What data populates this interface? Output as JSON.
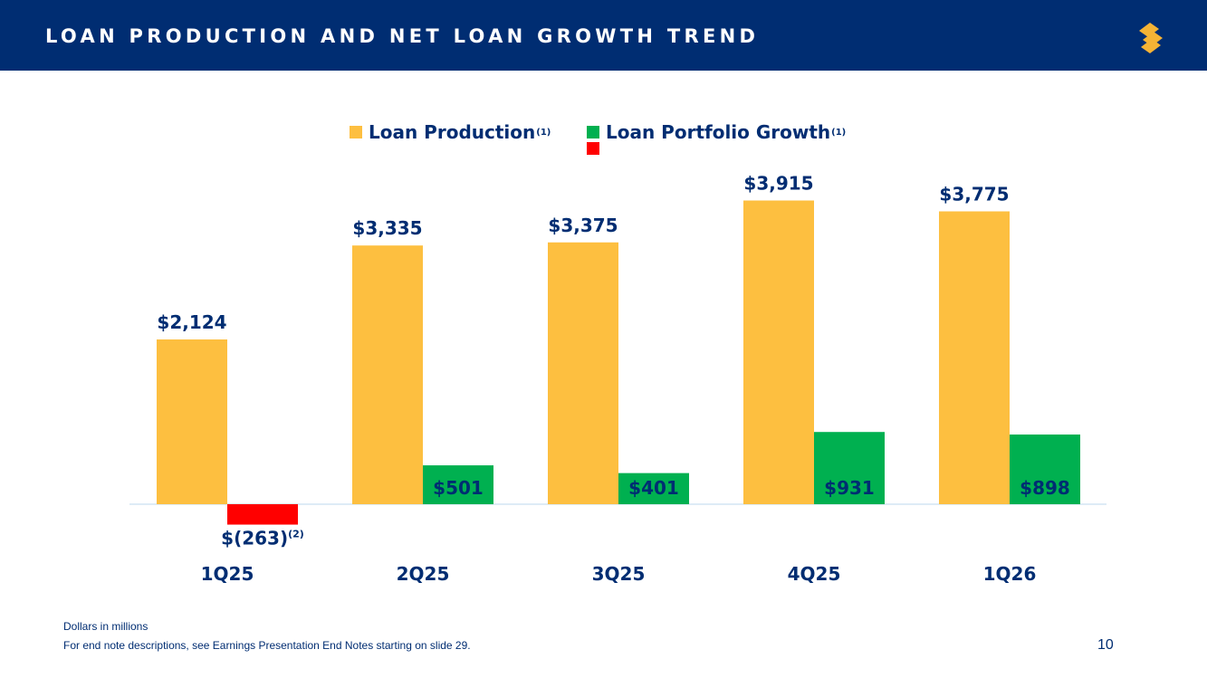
{
  "header": {
    "title": "LOAN PRODUCTION AND NET LOAN GROWTH TREND"
  },
  "logo": {
    "icon": "brand-s-logo-icon",
    "color": "#f5b335"
  },
  "colors": {
    "header_bg": "#002d72",
    "text": "#002d72",
    "production": "#fdbf40",
    "growth_positive": "#00b050",
    "growth_negative": "#ff0000",
    "axis": "#bdd7ee"
  },
  "legend": [
    {
      "label": "Loan Production",
      "note": "(1)"
    },
    {
      "label": "Loan Portfolio Growth",
      "note": "(1)"
    }
  ],
  "chart_data": {
    "type": "bar",
    "categories": [
      "1Q25",
      "2Q25",
      "3Q25",
      "4Q25",
      "1Q26"
    ],
    "series": [
      {
        "name": "Loan Production",
        "values": [
          2124,
          3335,
          3375,
          3915,
          3775
        ],
        "labels": [
          "$2,124",
          "$3,335",
          "$3,375",
          "$3,915",
          "$3,775"
        ]
      },
      {
        "name": "Loan Portfolio Growth",
        "values": [
          -263,
          501,
          401,
          931,
          898
        ],
        "labels": [
          "$(263)",
          "$501",
          "$401",
          "$931",
          "$898"
        ],
        "label_notes": [
          "(2)",
          "",
          "",
          "",
          ""
        ]
      }
    ],
    "legend_position": "top-center",
    "grid": false,
    "ylim": [
      -263,
      3915
    ]
  },
  "footer": {
    "units_note": "Dollars in millions",
    "end_note": "For end note descriptions, see Earnings Presentation End Notes starting on slide 29.",
    "page_number": "10"
  }
}
